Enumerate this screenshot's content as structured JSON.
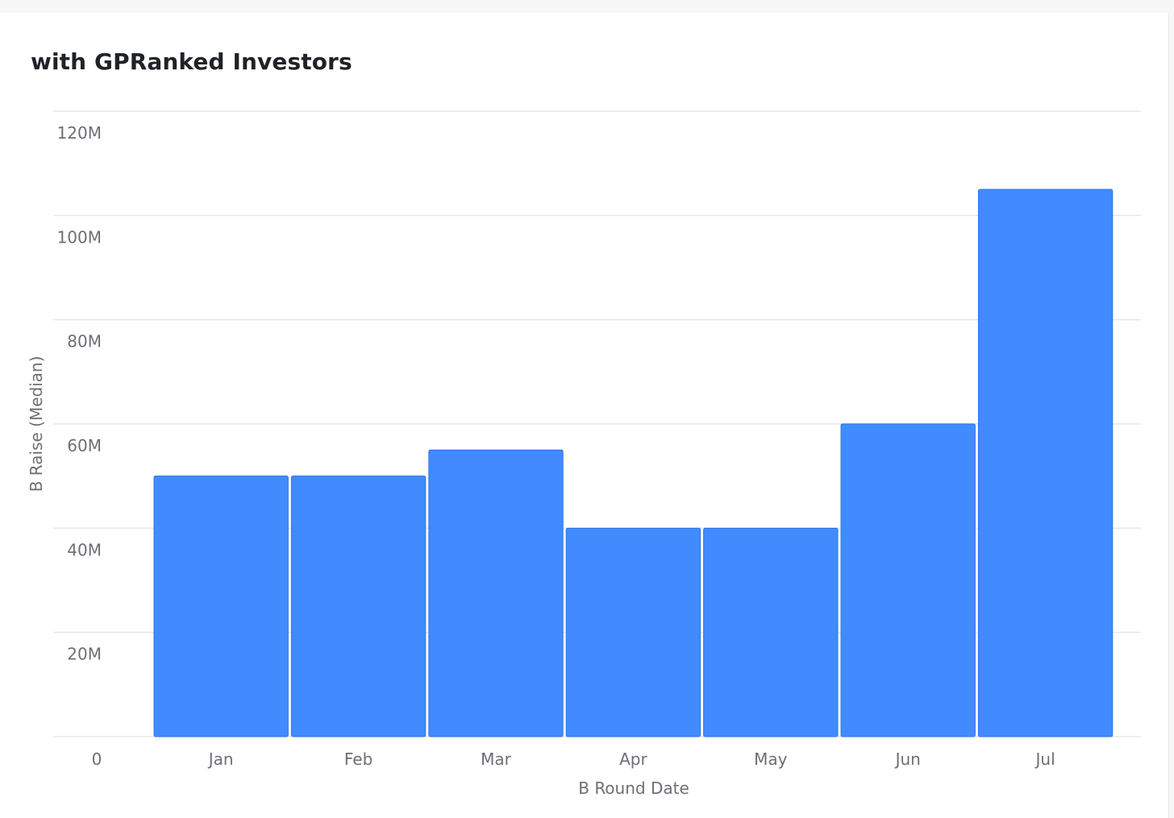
{
  "chart_data": {
    "type": "bar",
    "title": "with GPRanked Investors",
    "xlabel": "B Round Date",
    "ylabel": "B Raise (Median)",
    "categories": [
      "Jan",
      "Feb",
      "Mar",
      "Apr",
      "May",
      "Jun",
      "Jul"
    ],
    "values": [
      50000000,
      50000000,
      55000000,
      40000000,
      40000000,
      60000000,
      105000000
    ],
    "ylim": [
      0,
      120000000
    ],
    "yticks": [
      0,
      20000000,
      40000000,
      60000000,
      80000000,
      100000000,
      120000000
    ],
    "ytick_labels": [
      "0",
      "20M",
      "40M",
      "60M",
      "80M",
      "100M",
      "120M"
    ],
    "grid": true,
    "legend": "none",
    "bar_color": "#418bff",
    "bar_edge_color": "#2e74e8"
  }
}
